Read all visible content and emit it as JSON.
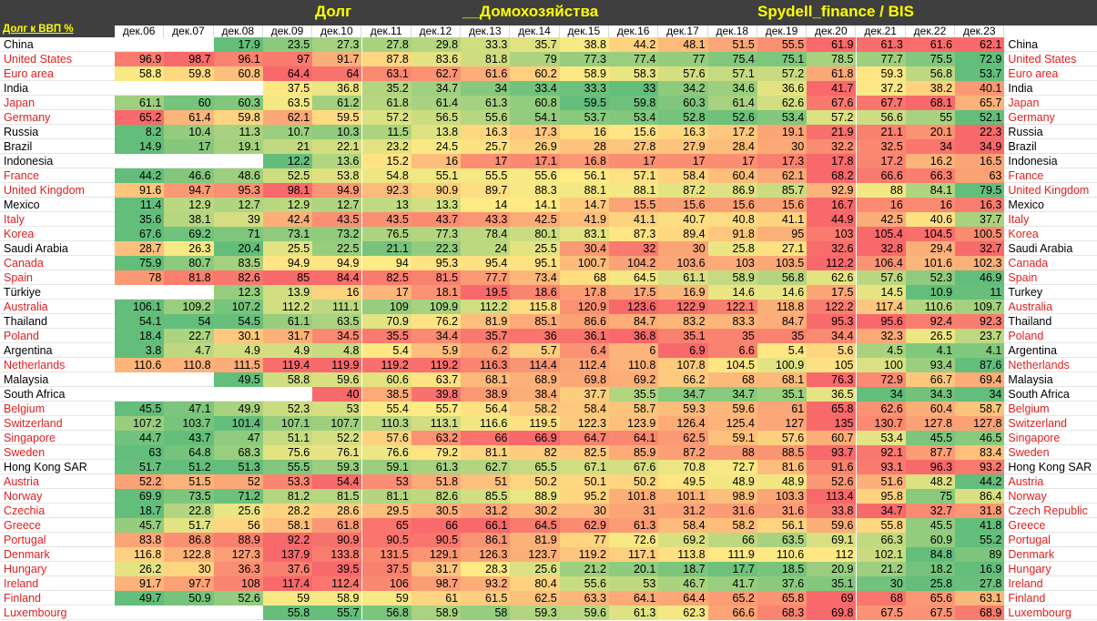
{
  "header": {
    "title_debt": "Долг",
    "title_households": "__Домохозяйства",
    "title_source": "Spydell_finance / BIS",
    "corner_label": "Долг к ВВП %"
  },
  "colors": {
    "header_bg": "#3f3f3f",
    "title_text": "#ffff00",
    "scale_low": "#63be7b",
    "scale_mid": "#ffeb84",
    "scale_high": "#f8696b",
    "advanced_label": "#e02020",
    "emerging_label": "#000000"
  },
  "chart_data": {
    "type": "heatmap",
    "title": "Долг __Домохозяйства Spydell_finance / BIS",
    "ylabel": "Долг к ВВП %",
    "columns": [
      "дек.06",
      "дек.07",
      "дек.08",
      "дек.09",
      "дек.10",
      "дек.11",
      "дек.12",
      "дек.13",
      "дек.14",
      "дек.15",
      "дек.16",
      "дек.17",
      "дек.18",
      "дек.19",
      "дек.20",
      "дек.21",
      "дек.22",
      "дек.23"
    ],
    "rows": [
      {
        "label": "China",
        "label_right": "China",
        "advanced": false,
        "values": [
          null,
          null,
          17.9,
          23.5,
          27.3,
          27.8,
          29.8,
          33.3,
          35.7,
          38.8,
          44.2,
          48.1,
          51.5,
          55.5,
          61.9,
          61.3,
          61.6,
          62.1
        ]
      },
      {
        "label": "United States",
        "label_right": "United States",
        "advanced": true,
        "values": [
          96.9,
          98.7,
          96.1,
          97,
          91.7,
          87.8,
          83.6,
          81.8,
          79,
          77.3,
          77.4,
          77,
          75.4,
          75.1,
          78.5,
          77.7,
          75.5,
          72.9
        ]
      },
      {
        "label": "Euro area",
        "label_right": "Euro area",
        "advanced": true,
        "values": [
          58.8,
          59.8,
          60.8,
          64.4,
          64,
          63.1,
          62.7,
          61.6,
          60.2,
          58.9,
          58.3,
          57.6,
          57.1,
          57.2,
          61.8,
          59.3,
          56.8,
          53.7
        ]
      },
      {
        "label": "India",
        "label_right": "India",
        "advanced": false,
        "values": [
          null,
          null,
          null,
          37.5,
          36.8,
          35.2,
          34.7,
          34,
          33.4,
          33.3,
          33,
          34.2,
          34.6,
          36.6,
          41.7,
          37.2,
          38.2,
          40.1
        ]
      },
      {
        "label": "Japan",
        "label_right": "Japan",
        "advanced": true,
        "values": [
          61.1,
          60,
          60.3,
          63.5,
          61.2,
          61.8,
          61.4,
          61.3,
          60.8,
          59.5,
          59.8,
          60.3,
          61.4,
          62.6,
          67.6,
          67.7,
          68.1,
          65.7
        ]
      },
      {
        "label": "Germany",
        "label_right": "Germany",
        "advanced": true,
        "values": [
          65.2,
          61.4,
          59.8,
          62.1,
          59.5,
          57.2,
          56.5,
          55.6,
          54.1,
          53.7,
          53.4,
          52.8,
          52.6,
          53.4,
          57.2,
          56.6,
          55,
          52.1
        ]
      },
      {
        "label": "Russia",
        "label_right": "Russia",
        "advanced": false,
        "values": [
          8.2,
          10.4,
          11.3,
          10.7,
          10.3,
          11.5,
          13.8,
          16.3,
          17.3,
          16,
          15.6,
          16.3,
          17.2,
          19.1,
          21.9,
          21.1,
          20.1,
          22.3
        ]
      },
      {
        "label": "Brazil",
        "label_right": "Brazil",
        "advanced": false,
        "values": [
          14.9,
          17,
          19.1,
          21,
          22.1,
          23.2,
          24.5,
          25.7,
          26.9,
          28,
          27.8,
          27.9,
          28.4,
          30,
          32.2,
          32.5,
          34,
          34.9
        ]
      },
      {
        "label": "Indonesia",
        "label_right": "Indonesia",
        "advanced": false,
        "values": [
          null,
          null,
          null,
          12.2,
          13.6,
          15.2,
          16,
          17,
          17.1,
          16.8,
          17,
          17,
          17,
          17.3,
          17.8,
          17.2,
          16.2,
          16.5
        ]
      },
      {
        "label": "France",
        "label_right": "France",
        "advanced": true,
        "values": [
          44.2,
          46.6,
          48.6,
          52.5,
          53.8,
          54.8,
          55.1,
          55.5,
          55.6,
          56.1,
          57.1,
          58.4,
          60.4,
          62.1,
          68.2,
          66.6,
          66.3,
          63
        ]
      },
      {
        "label": "United Kingdom",
        "label_right": "United Kingdom",
        "advanced": true,
        "values": [
          91.6,
          94.7,
          95.3,
          98.1,
          94.9,
          92.3,
          90.9,
          89.7,
          88.3,
          88.1,
          88.1,
          87.2,
          86.9,
          85.7,
          92.9,
          88,
          84.1,
          79.5
        ]
      },
      {
        "label": "Mexico",
        "label_right": "Mexico",
        "advanced": false,
        "values": [
          11.4,
          12.9,
          12.7,
          12.9,
          12.7,
          13,
          13.3,
          14,
          14.1,
          14.7,
          15.5,
          15.6,
          15.6,
          15.6,
          16.7,
          16,
          16,
          16.3
        ]
      },
      {
        "label": "Italy",
        "label_right": "Italy",
        "advanced": true,
        "values": [
          35.6,
          38.1,
          39,
          42.4,
          43.5,
          43.5,
          43.7,
          43.3,
          42.5,
          41.9,
          41.1,
          40.7,
          40.8,
          41.1,
          44.9,
          42.5,
          40.6,
          37.7
        ]
      },
      {
        "label": "Korea",
        "label_right": "Korea",
        "advanced": true,
        "values": [
          67.6,
          69.2,
          71,
          73.1,
          73.2,
          76.5,
          77.3,
          78.4,
          80.1,
          83.1,
          87.3,
          89.4,
          91.8,
          95,
          103,
          105.4,
          104.5,
          100.5
        ]
      },
      {
        "label": "Saudi Arabia",
        "label_right": "Saudi Arabia",
        "advanced": false,
        "values": [
          28.7,
          26.3,
          20.4,
          25.5,
          22.5,
          21.1,
          22.3,
          24,
          25.5,
          30.4,
          32,
          30,
          25.8,
          27.1,
          32.6,
          32.8,
          29.4,
          32.7
        ]
      },
      {
        "label": "Canada",
        "label_right": "Canada",
        "advanced": true,
        "values": [
          75.9,
          80.7,
          83.5,
          94.9,
          94.9,
          94,
          95.3,
          95.4,
          95.1,
          100.7,
          104.2,
          103.6,
          103,
          103.5,
          112.2,
          106.4,
          101.6,
          102.3
        ]
      },
      {
        "label": "Spain",
        "label_right": "Spain",
        "advanced": true,
        "values": [
          78,
          81.8,
          82.6,
          85,
          84.4,
          82.5,
          81.5,
          77.7,
          73.4,
          68,
          64.5,
          61.1,
          58.9,
          56.8,
          62.6,
          57.6,
          52.3,
          46.9
        ]
      },
      {
        "label": "Türkiye",
        "label_right": "Turkey",
        "advanced": false,
        "values": [
          null,
          null,
          12.3,
          13.9,
          16,
          17,
          18.1,
          19.5,
          18.6,
          17.8,
          17.5,
          16.9,
          14.6,
          14.6,
          17.5,
          14.5,
          10.9,
          11
        ]
      },
      {
        "label": "Australia",
        "label_right": "Australia",
        "advanced": true,
        "values": [
          106.1,
          109.2,
          107.2,
          112.2,
          111.1,
          109,
          109.9,
          112.2,
          115.8,
          120.9,
          123.6,
          122.9,
          122.1,
          118.8,
          122.2,
          117.4,
          110.6,
          109.7
        ]
      },
      {
        "label": "Thailand",
        "label_right": "Thailand",
        "advanced": false,
        "values": [
          54.1,
          54,
          54.5,
          61.1,
          63.5,
          70.9,
          76.2,
          81.9,
          85.1,
          86.6,
          84.7,
          83.2,
          83.3,
          84.7,
          95.3,
          95.6,
          92.4,
          92.3
        ]
      },
      {
        "label": "Poland",
        "label_right": "Poland",
        "advanced": true,
        "values": [
          18.4,
          22.7,
          30.1,
          31.7,
          34.5,
          35.5,
          34.4,
          35.7,
          36,
          36.1,
          36.8,
          35.1,
          35,
          35,
          34.4,
          32.3,
          26.5,
          23.7
        ]
      },
      {
        "label": "Argentina",
        "label_right": "Argentina",
        "advanced": false,
        "values": [
          3.8,
          4.7,
          4.9,
          4.9,
          4.8,
          5.4,
          5.9,
          6.2,
          5.7,
          6.4,
          6,
          6.9,
          6.6,
          5.4,
          5.6,
          4.5,
          4.1,
          4.1
        ]
      },
      {
        "label": "Netherlands",
        "label_right": "Netherlands",
        "advanced": true,
        "values": [
          110.6,
          110.8,
          111.5,
          119.4,
          119.9,
          119.2,
          119.2,
          116.3,
          114.4,
          112.4,
          110.8,
          107.8,
          104.5,
          100.9,
          105,
          100,
          93.4,
          87.6
        ]
      },
      {
        "label": "Malaysia",
        "label_right": "Malaysia",
        "advanced": false,
        "values": [
          null,
          null,
          49.5,
          58.8,
          59.6,
          60.6,
          63.7,
          68.1,
          68.9,
          69.8,
          69.2,
          66.2,
          68,
          68.1,
          76.3,
          72.9,
          66.7,
          69.4
        ]
      },
      {
        "label": "South Africa",
        "label_right": "South Africa",
        "advanced": false,
        "values": [
          null,
          null,
          null,
          null,
          40,
          38.5,
          39.8,
          38.9,
          38.4,
          37.7,
          35.5,
          34.7,
          34.7,
          35.1,
          36.5,
          34,
          34.3,
          34
        ]
      },
      {
        "label": "Belgium",
        "label_right": "Belgium",
        "advanced": true,
        "values": [
          45.5,
          47.1,
          49.9,
          52.3,
          53,
          55.4,
          55.7,
          56.4,
          58.2,
          58.4,
          58.7,
          59.3,
          59.6,
          61,
          65.8,
          62.6,
          60.4,
          58.7
        ]
      },
      {
        "label": "Switzerland",
        "label_right": "Switzerland",
        "advanced": true,
        "values": [
          107.2,
          103.7,
          101.4,
          107.1,
          107.7,
          110.3,
          113.1,
          116.6,
          119.5,
          122.3,
          123.9,
          126.4,
          125.4,
          127,
          135,
          130.7,
          127.8,
          127.8
        ]
      },
      {
        "label": "Singapore",
        "label_right": "Singapore",
        "advanced": true,
        "values": [
          44.7,
          43.7,
          47,
          51.1,
          52.2,
          57.6,
          63.2,
          66,
          66.9,
          64.7,
          64.1,
          62.5,
          59.1,
          57.6,
          60.7,
          53.4,
          45.5,
          46.5
        ]
      },
      {
        "label": "Sweden",
        "label_right": "Sweden",
        "advanced": true,
        "values": [
          63,
          64.8,
          68.3,
          75.6,
          76.1,
          76.6,
          79.2,
          81.1,
          82,
          82.5,
          85.9,
          87.2,
          88,
          88.5,
          93.7,
          92.1,
          87.7,
          83.4
        ]
      },
      {
        "label": "Hong Kong SAR",
        "label_right": "Hong Kong SAR",
        "advanced": false,
        "values": [
          51.7,
          51.2,
          51.3,
          55.5,
          59.3,
          59.1,
          61.3,
          62.7,
          65.5,
          67.1,
          67.6,
          70.8,
          72.7,
          81.6,
          91.6,
          93.1,
          96.3,
          93.2
        ]
      },
      {
        "label": "Austria",
        "label_right": "Austria",
        "advanced": true,
        "values": [
          52.2,
          51.5,
          52,
          53.3,
          54.4,
          53,
          51.8,
          51,
          50.2,
          50.1,
          50.2,
          49.5,
          48.9,
          48.9,
          52.6,
          51.6,
          48.2,
          44.2
        ]
      },
      {
        "label": "Norway",
        "label_right": "Norway",
        "advanced": true,
        "values": [
          69.9,
          73.5,
          71.2,
          81.2,
          81.5,
          81.1,
          82.6,
          85.5,
          88.9,
          95.2,
          101.8,
          101.1,
          98.9,
          103.3,
          113.4,
          95.8,
          75,
          86.4
        ]
      },
      {
        "label": "Czechia",
        "label_right": "Czech Republic",
        "advanced": true,
        "values": [
          18.7,
          22.8,
          25.6,
          28.2,
          28.6,
          29.5,
          30.5,
          31.2,
          30.2,
          30,
          31,
          31.2,
          31.6,
          31.6,
          33.8,
          34.7,
          32.7,
          31.8
        ]
      },
      {
        "label": "Greece",
        "label_right": "Greece",
        "advanced": true,
        "values": [
          45.7,
          51.7,
          56,
          58.1,
          61.8,
          65,
          66,
          66.1,
          64.5,
          62.9,
          61.3,
          58.4,
          58.2,
          56.1,
          59.6,
          55.8,
          45.5,
          41.8
        ]
      },
      {
        "label": "Portugal",
        "label_right": "Portugal",
        "advanced": true,
        "values": [
          83.8,
          86.8,
          88.9,
          92.2,
          90.9,
          90.5,
          90.5,
          86.1,
          81.9,
          77,
          72.6,
          69.2,
          66,
          63.5,
          69.1,
          66.3,
          60.9,
          55.2
        ]
      },
      {
        "label": "Denmark",
        "label_right": "Denmark",
        "advanced": true,
        "values": [
          116.8,
          122.8,
          127.3,
          137.9,
          133.8,
          131.5,
          129.1,
          126.3,
          123.7,
          119.2,
          117.1,
          113.8,
          111.9,
          110.6,
          112,
          102.1,
          84.8,
          89
        ]
      },
      {
        "label": "Hungary",
        "label_right": "Hungary",
        "advanced": true,
        "values": [
          26.2,
          30,
          36.3,
          37.6,
          39.5,
          37.5,
          31.7,
          28.3,
          25.6,
          21.2,
          20.1,
          18.7,
          17.7,
          18.5,
          20.9,
          21.2,
          18.2,
          16.9
        ]
      },
      {
        "label": "Ireland",
        "label_right": "Ireland",
        "advanced": true,
        "values": [
          91.7,
          97.7,
          108,
          117.4,
          112.4,
          106,
          98.7,
          93.2,
          80.4,
          55.6,
          53,
          46.7,
          41.7,
          37.6,
          35.1,
          30,
          25.8,
          27.8
        ]
      },
      {
        "label": "Finland",
        "label_right": "Finland",
        "advanced": true,
        "values": [
          49.7,
          50.9,
          52.6,
          59,
          58.9,
          59,
          61,
          61.5,
          62.5,
          63.3,
          64.1,
          64.4,
          65.2,
          65.8,
          69,
          68,
          65.6,
          63.1
        ]
      },
      {
        "label": "Luxembourg",
        "label_right": "Luxembourg",
        "advanced": true,
        "values": [
          null,
          null,
          null,
          55.8,
          55.7,
          56.8,
          58.9,
          58,
          59.3,
          59.6,
          61.3,
          62.3,
          66.6,
          68.3,
          69.8,
          67.5,
          67.5,
          68.9
        ]
      }
    ]
  }
}
